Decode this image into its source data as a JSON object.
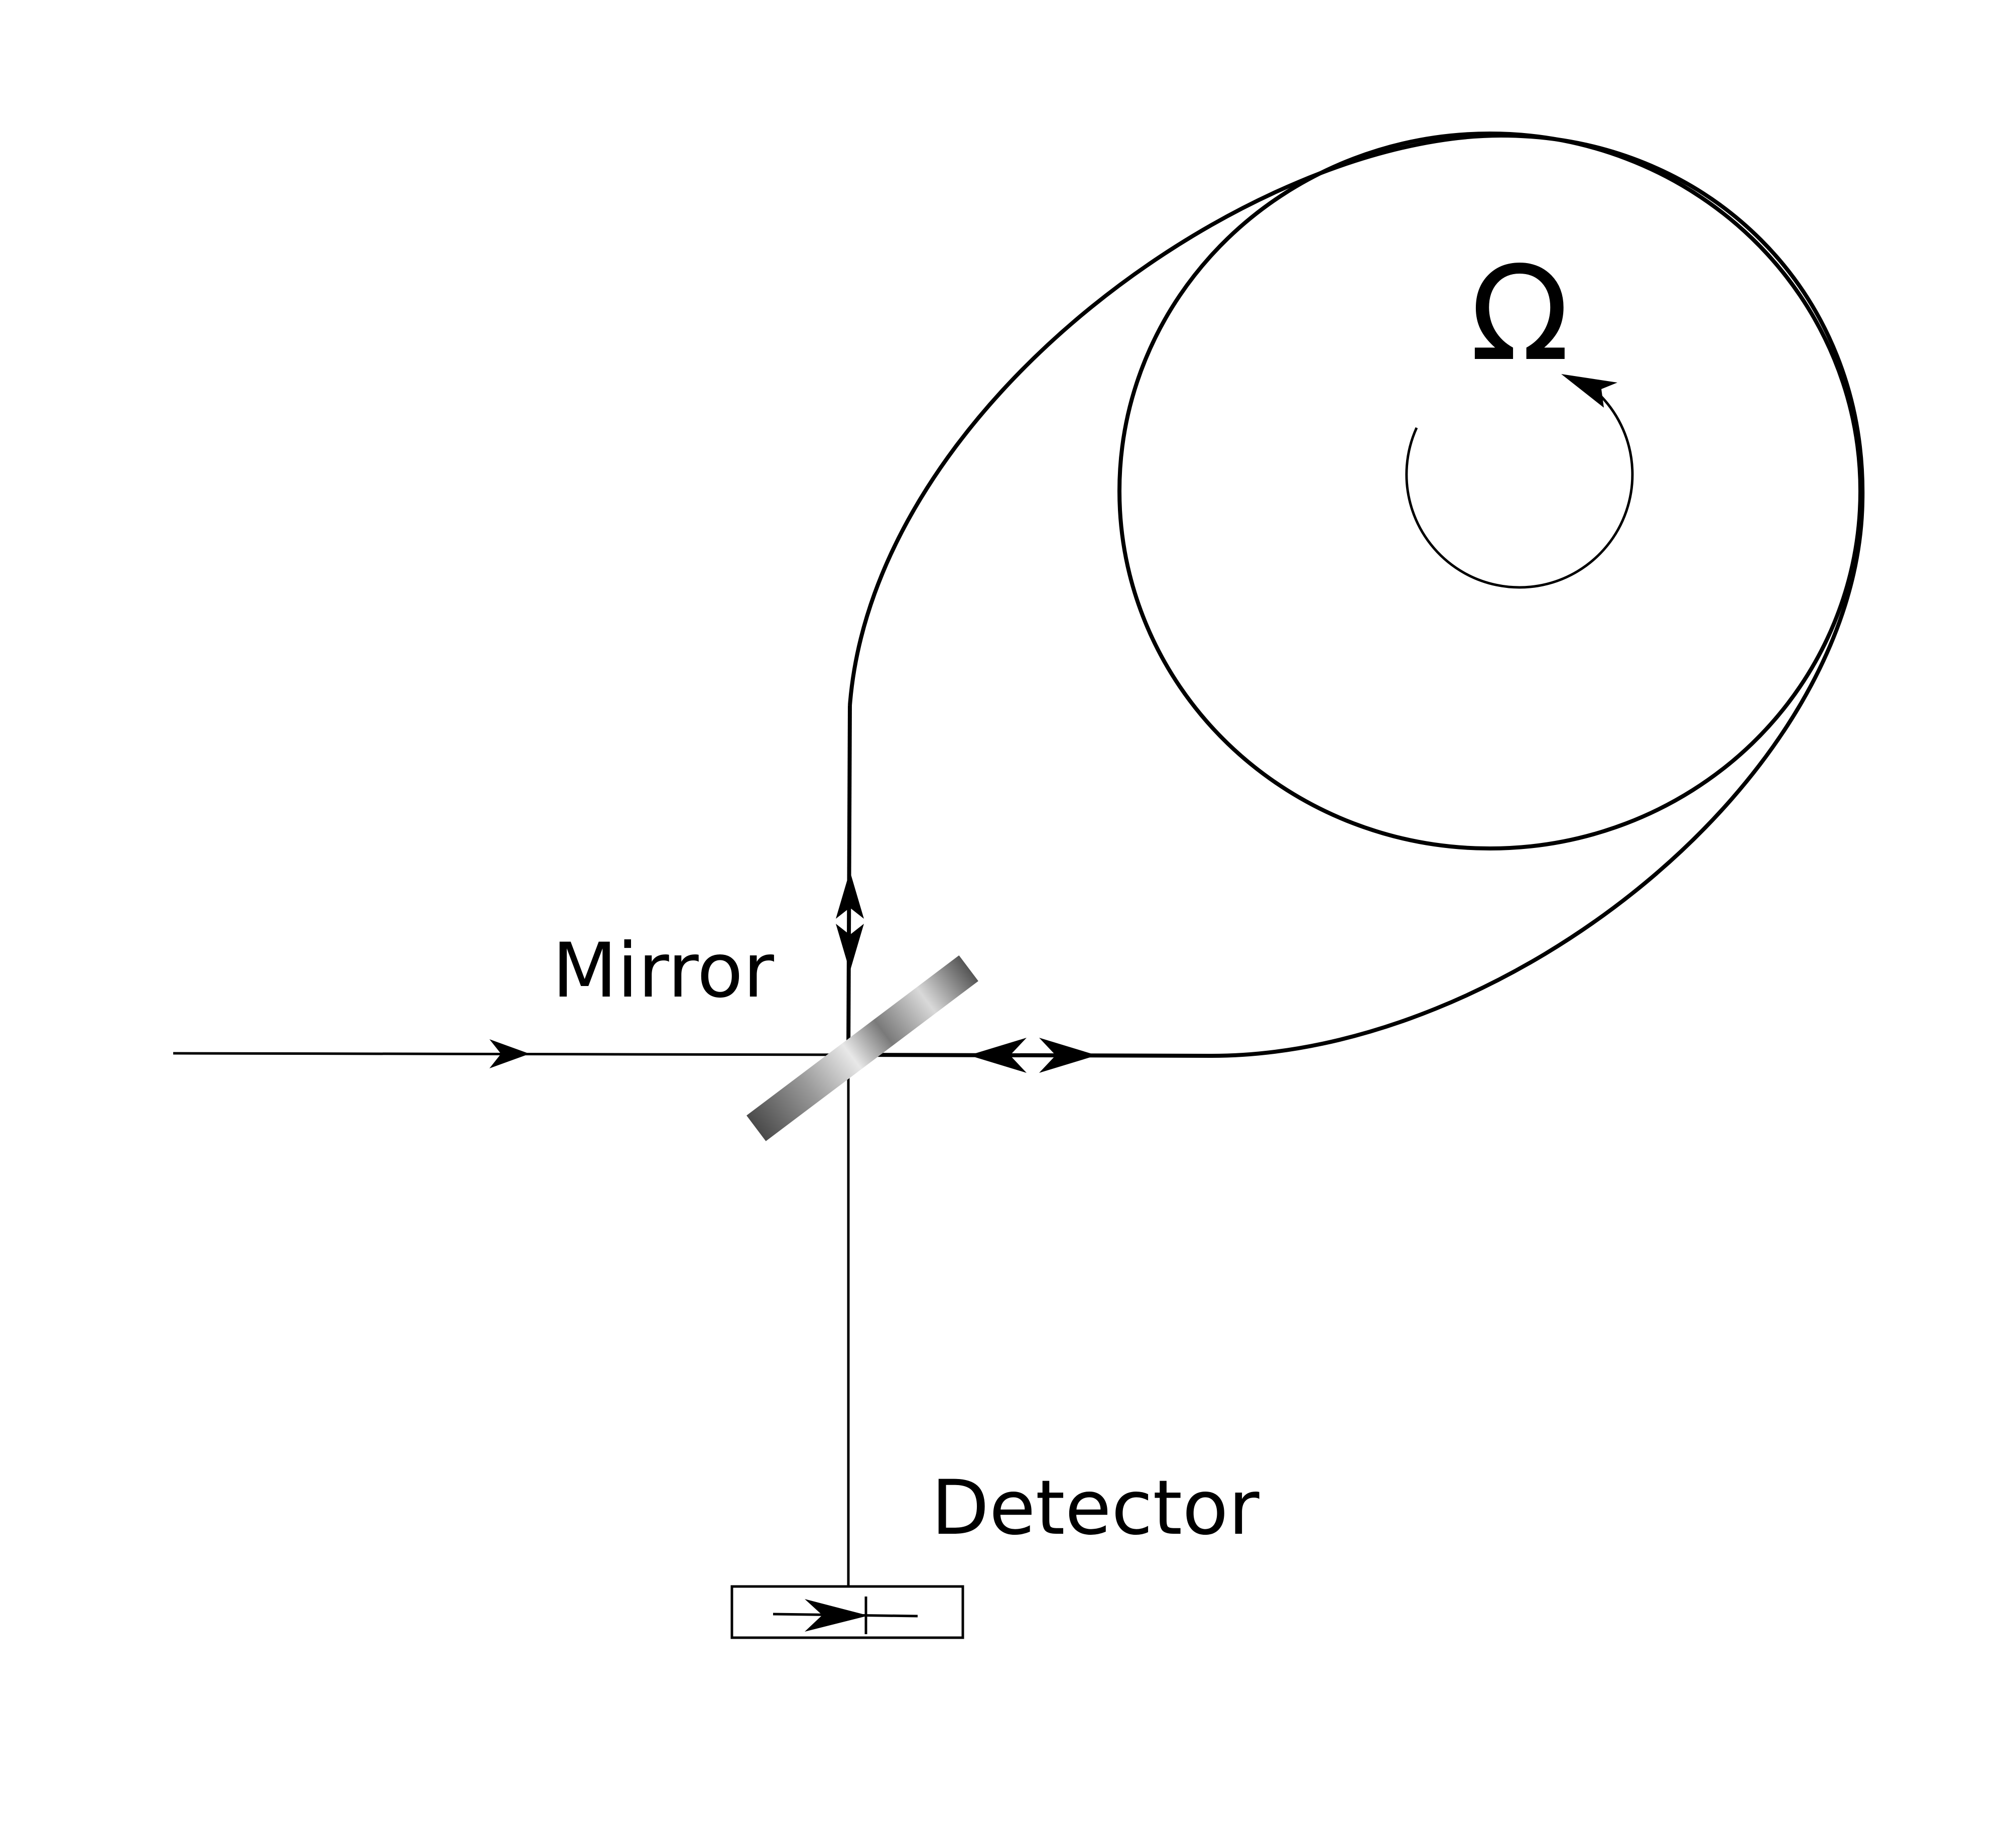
{
  "labels": {
    "mirror": "Mirror",
    "detector": "Detector",
    "rotation_symbol": "Ω"
  },
  "icons": {
    "mirror": "beam-splitter-mirror-icon",
    "detector": "photodetector-icon",
    "rotation": "rotation-arrow-icon"
  },
  "colors": {
    "line": "#000000",
    "mirror_dark": "#555555",
    "mirror_light": "#e6e6e6",
    "background": "#ffffff"
  }
}
